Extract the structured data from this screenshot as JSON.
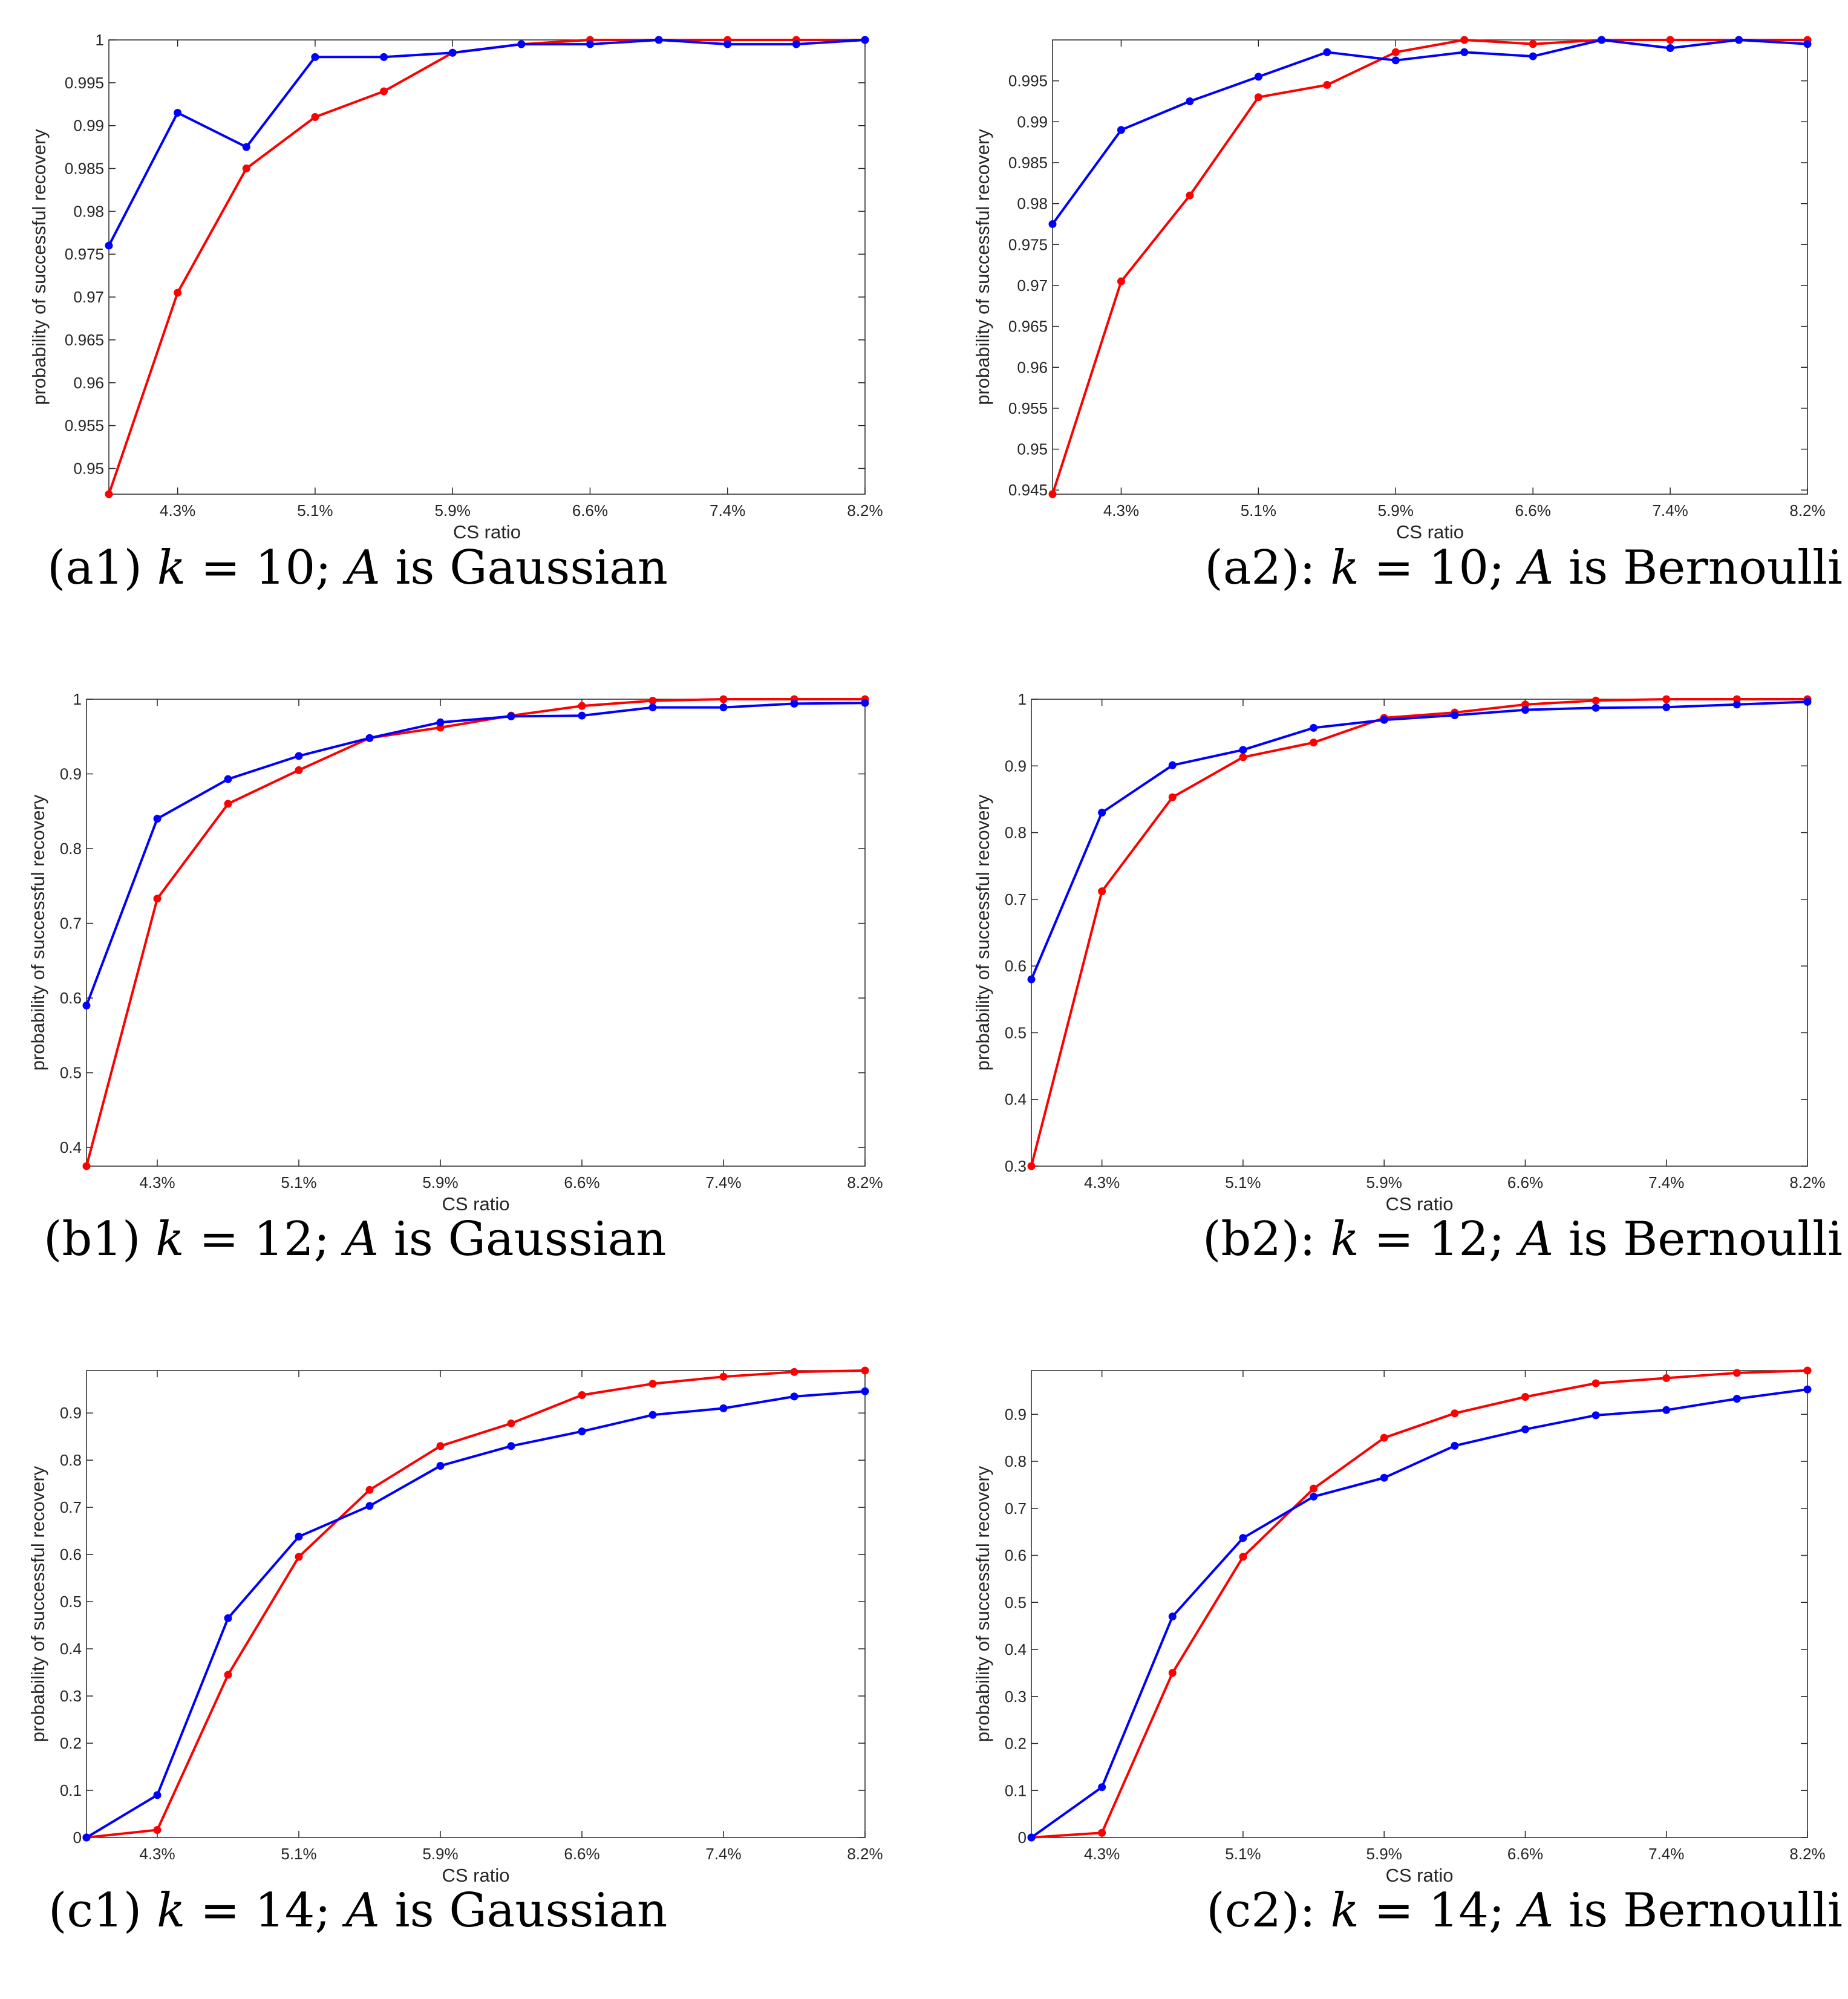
{
  "colors": {
    "series1": "#ff0000",
    "series2": "#0000ff",
    "axis": "#262626",
    "frame": "#000000"
  },
  "charts": [
    {
      "id": "a1",
      "caption": {
        "prefix": "(a1) ",
        "k": "k",
        "eq": " = 10; ",
        "A": "A",
        "rest": " is Gaussian"
      },
      "chart_data": {
        "type": "line",
        "x": [
          1,
          2,
          3,
          4,
          5,
          6,
          7,
          8,
          9,
          10,
          11,
          12
        ],
        "xlim": [
          1,
          12
        ],
        "ylim": [
          0.947,
          1.0
        ],
        "xticks": [
          2,
          4,
          6,
          8,
          10,
          12
        ],
        "xticklabels": [
          "4.3%",
          "5.1%",
          "5.9%",
          "6.6%",
          "7.4%",
          "8.2%"
        ],
        "yticks": [
          0.95,
          0.955,
          0.96,
          0.965,
          0.97,
          0.975,
          0.98,
          0.985,
          0.99,
          0.995,
          1
        ],
        "yticklabels": [
          "0.95",
          "0.955",
          "0.96",
          "0.965",
          "0.97",
          "0.975",
          "0.98",
          "0.985",
          "0.99",
          "0.995",
          "1"
        ],
        "xlabel": "CS ratio",
        "ylabel": "probability of successful recovery",
        "series": [
          {
            "name": "red",
            "color": "#ff0000",
            "values": [
              0.947,
              0.9705,
              0.985,
              0.991,
              0.994,
              0.9985,
              0.9995,
              1.0,
              1.0,
              1.0,
              1.0,
              1.0
            ]
          },
          {
            "name": "blue",
            "color": "#0000ff",
            "values": [
              0.976,
              0.9915,
              0.9875,
              0.998,
              0.998,
              0.9985,
              0.9995,
              0.9995,
              1.0,
              0.9995,
              0.9995,
              1.0
            ]
          }
        ]
      }
    },
    {
      "id": "a2",
      "caption": {
        "prefix": "(a2): ",
        "k": "k",
        "eq": " = 10; ",
        "A": "A",
        "rest": " is Bernoulli"
      },
      "chart_data": {
        "type": "line",
        "x": [
          1,
          2,
          3,
          4,
          5,
          6,
          7,
          8,
          9,
          10,
          11,
          12
        ],
        "xlim": [
          1,
          12
        ],
        "ylim": [
          0.9445,
          1.0
        ],
        "xticks": [
          2,
          4,
          6,
          8,
          10,
          12
        ],
        "xticklabels": [
          "4.3%",
          "5.1%",
          "5.9%",
          "6.6%",
          "7.4%",
          "8.2%"
        ],
        "yticks": [
          0.945,
          0.95,
          0.955,
          0.96,
          0.965,
          0.97,
          0.975,
          0.98,
          0.985,
          0.99,
          0.995
        ],
        "yticklabels": [
          "0.945",
          "0.95",
          "0.955",
          "0.96",
          "0.965",
          "0.97",
          "0.975",
          "0.98",
          "0.985",
          "0.99",
          "0.995"
        ],
        "xlabel": "CS ratio",
        "ylabel": "probability of successful recovery",
        "series": [
          {
            "name": "red",
            "color": "#ff0000",
            "values": [
              0.9445,
              0.9705,
              0.981,
              0.993,
              0.9945,
              0.9985,
              1.0,
              0.9995,
              1.0,
              1.0,
              1.0,
              1.0
            ]
          },
          {
            "name": "blue",
            "color": "#0000ff",
            "values": [
              0.9775,
              0.989,
              0.9925,
              0.9955,
              0.9985,
              0.9975,
              0.9985,
              0.998,
              1.0,
              0.999,
              1.0,
              0.9995
            ]
          }
        ]
      }
    },
    {
      "id": "b1",
      "caption": {
        "prefix": "(b1) ",
        "k": "k",
        "eq": " = 12; ",
        "A": "A",
        "rest": " is Gaussian"
      },
      "chart_data": {
        "type": "line",
        "x": [
          1,
          2,
          3,
          4,
          5,
          6,
          7,
          8,
          9,
          10,
          11,
          12
        ],
        "xlim": [
          1,
          12
        ],
        "ylim": [
          0.375,
          1.0
        ],
        "xticks": [
          2,
          4,
          6,
          8,
          10,
          12
        ],
        "xticklabels": [
          "4.3%",
          "5.1%",
          "5.9%",
          "6.6%",
          "7.4%",
          "8.2%"
        ],
        "yticks": [
          0.4,
          0.5,
          0.6,
          0.7,
          0.8,
          0.9,
          1
        ],
        "yticklabels": [
          "0.4",
          "0.5",
          "0.6",
          "0.7",
          "0.8",
          "0.9",
          "1"
        ],
        "xlabel": "CS ratio",
        "ylabel": "probability of successful recovery",
        "series": [
          {
            "name": "red",
            "color": "#ff0000",
            "values": [
              0.375,
              0.733,
              0.86,
              0.905,
              0.948,
              0.962,
              0.978,
              0.991,
              0.998,
              1.0,
              1.0,
              1.0
            ]
          },
          {
            "name": "blue",
            "color": "#0000ff",
            "values": [
              0.59,
              0.84,
              0.893,
              0.924,
              0.948,
              0.969,
              0.977,
              0.978,
              0.989,
              0.989,
              0.994,
              0.995
            ]
          }
        ]
      }
    },
    {
      "id": "b2",
      "caption": {
        "prefix": "(b2): ",
        "k": "k",
        "eq": " = 12; ",
        "A": "A",
        "rest": " is Bernoulli"
      },
      "chart_data": {
        "type": "line",
        "x": [
          1,
          2,
          3,
          4,
          5,
          6,
          7,
          8,
          9,
          10,
          11,
          12
        ],
        "xlim": [
          1,
          12
        ],
        "ylim": [
          0.3,
          1.0
        ],
        "xticks": [
          2,
          4,
          6,
          8,
          10,
          12
        ],
        "xticklabels": [
          "4.3%",
          "5.1%",
          "5.9%",
          "6.6%",
          "7.4%",
          "8.2%"
        ],
        "yticks": [
          0.3,
          0.4,
          0.5,
          0.6,
          0.7,
          0.8,
          0.9,
          1
        ],
        "yticklabels": [
          "0.3",
          "0.4",
          "0.5",
          "0.6",
          "0.7",
          "0.8",
          "0.9",
          "1"
        ],
        "xlabel": "CS ratio",
        "ylabel": "probability of successful recovery",
        "series": [
          {
            "name": "red",
            "color": "#ff0000",
            "values": [
              0.3,
              0.712,
              0.853,
              0.913,
              0.935,
              0.972,
              0.98,
              0.992,
              0.998,
              1.0,
              1.0,
              1.0
            ]
          },
          {
            "name": "blue",
            "color": "#0000ff",
            "values": [
              0.58,
              0.83,
              0.901,
              0.924,
              0.957,
              0.969,
              0.976,
              0.984,
              0.987,
              0.988,
              0.992,
              0.996
            ]
          }
        ]
      }
    },
    {
      "id": "c1",
      "caption": {
        "prefix": "(c1) ",
        "k": "k",
        "eq": " = 14; ",
        "A": "A",
        "rest": " is Gaussian"
      },
      "chart_data": {
        "type": "line",
        "x": [
          1,
          2,
          3,
          4,
          5,
          6,
          7,
          8,
          9,
          10,
          11,
          12
        ],
        "xlim": [
          1,
          12
        ],
        "ylim": [
          0,
          0.99
        ],
        "xticks": [
          2,
          4,
          6,
          8,
          10,
          12
        ],
        "xticklabels": [
          "4.3%",
          "5.1%",
          "5.9%",
          "6.6%",
          "7.4%",
          "8.2%"
        ],
        "yticks": [
          0,
          0.1,
          0.2,
          0.3,
          0.4,
          0.5,
          0.6,
          0.7,
          0.8,
          0.9
        ],
        "yticklabels": [
          "0",
          "0.1",
          "0.2",
          "0.3",
          "0.4",
          "0.5",
          "0.6",
          "0.7",
          "0.8",
          "0.9"
        ],
        "xlabel": "CS ratio",
        "ylabel": "probability of successful recovery",
        "series": [
          {
            "name": "red",
            "color": "#ff0000",
            "values": [
              0.0,
              0.016,
              0.345,
              0.595,
              0.737,
              0.83,
              0.878,
              0.938,
              0.962,
              0.977,
              0.987,
              0.99
            ]
          },
          {
            "name": "blue",
            "color": "#0000ff",
            "values": [
              0.0,
              0.09,
              0.465,
              0.638,
              0.703,
              0.788,
              0.83,
              0.861,
              0.896,
              0.91,
              0.935,
              0.946
            ]
          }
        ]
      }
    },
    {
      "id": "c2",
      "caption": {
        "prefix": "(c2): ",
        "k": "k",
        "eq": " = 14; ",
        "A": "A",
        "rest": " is Bernoulli"
      },
      "chart_data": {
        "type": "line",
        "x": [
          1,
          2,
          3,
          4,
          5,
          6,
          7,
          8,
          9,
          10,
          11,
          12
        ],
        "xlim": [
          1,
          12
        ],
        "ylim": [
          0,
          0.993
        ],
        "xticks": [
          2,
          4,
          6,
          8,
          10,
          12
        ],
        "xticklabels": [
          "4.3%",
          "5.1%",
          "5.9%",
          "6.6%",
          "7.4%",
          "8.2%"
        ],
        "yticks": [
          0,
          0.1,
          0.2,
          0.3,
          0.4,
          0.5,
          0.6,
          0.7,
          0.8,
          0.9
        ],
        "yticklabels": [
          "0",
          "0.1",
          "0.2",
          "0.3",
          "0.4",
          "0.5",
          "0.6",
          "0.7",
          "0.8",
          "0.9"
        ],
        "xlabel": "CS ratio",
        "ylabel": "probability of successful recovery",
        "series": [
          {
            "name": "red",
            "color": "#ff0000",
            "values": [
              0.0,
              0.01,
              0.35,
              0.597,
              0.742,
              0.85,
              0.902,
              0.937,
              0.966,
              0.977,
              0.988,
              0.993
            ]
          },
          {
            "name": "blue",
            "color": "#0000ff",
            "values": [
              0.0,
              0.107,
              0.47,
              0.637,
              0.725,
              0.765,
              0.833,
              0.868,
              0.898,
              0.909,
              0.933,
              0.953
            ]
          }
        ]
      }
    }
  ]
}
